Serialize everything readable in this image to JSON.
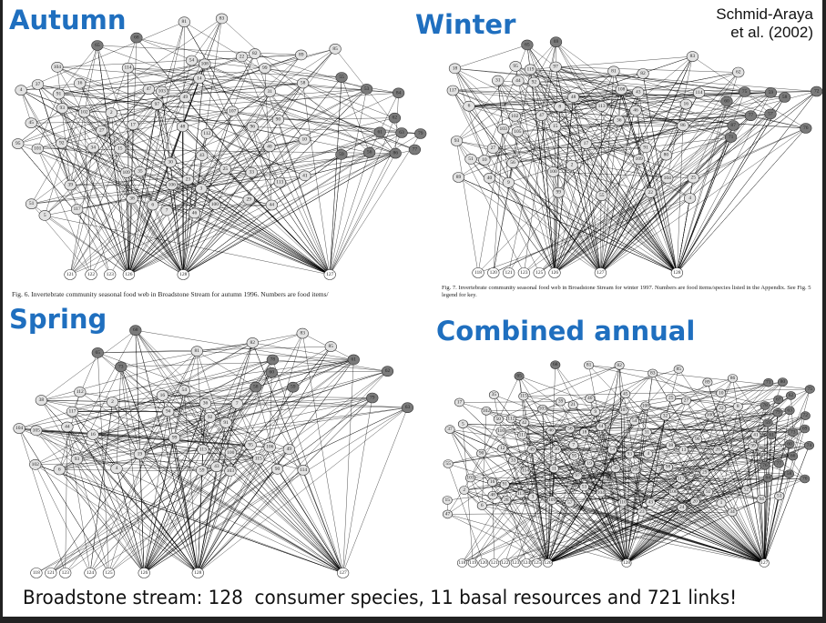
{
  "credit": {
    "line1": "Schmid-Araya",
    "line2": "et al. (2002)"
  },
  "footer": "Broadstone stream: 128  consumer species, 11 basal resources and 721 links!",
  "colors": {
    "title": "#1f6fbf",
    "node_light": "#e2e2e2",
    "node_dark": "#7a7a7a",
    "node_basal": "#ffffff",
    "link": "#000000"
  },
  "panels": [
    {
      "title": "Autumn",
      "caption": "Fig. 6.   Invertebrate community seasonal food web in Broadstone Stream for autumn 1996. Numbers are food items/",
      "top": [
        "65",
        "68",
        "81",
        "83",
        "82",
        "89",
        "85"
      ],
      "middle": [
        "114",
        "102",
        "117",
        "38",
        "39",
        "104",
        "40",
        "16",
        "107",
        "22",
        "15",
        "17",
        "23",
        "25",
        "103",
        "112",
        "113",
        "41",
        "106",
        "108",
        "109",
        "43",
        "27",
        "31",
        "29",
        "30",
        "44",
        "45",
        "46",
        "47",
        "48",
        "99",
        "100",
        "90",
        "95",
        "96",
        "97",
        "93",
        "92",
        "49",
        "101",
        "91",
        "51",
        "54",
        "58",
        "33",
        "35",
        "34",
        "37",
        "2",
        "3",
        "4",
        "5",
        "10",
        "6",
        "7",
        "14"
      ],
      "dark": [
        "84",
        "77",
        "79",
        "59",
        "62",
        "63",
        "53",
        "61",
        "86",
        "55",
        "56"
      ],
      "bottom": [
        "121",
        "122",
        "123",
        "126",
        "128",
        "127"
      ]
    },
    {
      "title": "Winter",
      "caption": "Fig. 7.   Invertebrate community seasonal food web in Broadstone Stream for winter 1997. Numbers are food items/species listed in the Appendix. See Fig. 5 legend for key.",
      "top": [
        "65",
        "69",
        "81",
        "82",
        "83",
        "62"
      ],
      "middle": [
        "89",
        "86",
        "80",
        "22",
        "114",
        "117",
        "102",
        "103",
        "104",
        "105",
        "113",
        "119",
        "16",
        "18",
        "15",
        "17",
        "109",
        "108",
        "25",
        "27",
        "31",
        "51",
        "55",
        "56",
        "36",
        "40",
        "43",
        "44",
        "46",
        "47",
        "48",
        "91",
        "92",
        "93",
        "95",
        "97",
        "99",
        "100",
        "2",
        "4",
        "6",
        "8",
        "9",
        "10"
      ],
      "dark": [
        "87",
        "75",
        "76",
        "71",
        "72",
        "77",
        "58",
        "59",
        "60",
        "57"
      ],
      "bottom": [
        "118",
        "120",
        "121",
        "123",
        "125",
        "126",
        "127",
        "128"
      ]
    },
    {
      "title": "Spring",
      "caption": "",
      "top": [
        "65",
        "68",
        "81",
        "82",
        "83",
        "85"
      ],
      "middle": [
        "90",
        "102",
        "117",
        "105",
        "19",
        "106",
        "104",
        "103",
        "16",
        "112",
        "113",
        "114",
        "115",
        "59",
        "49",
        "38",
        "36",
        "91",
        "92",
        "93",
        "94",
        "95",
        "99",
        "100",
        "54",
        "43",
        "44",
        "2",
        "4",
        "6",
        "7",
        "16"
      ],
      "dark": [
        "78",
        "79",
        "73",
        "58",
        "59",
        "60",
        "61",
        "62",
        "63"
      ],
      "bottom": [
        "118",
        "121",
        "123",
        "124",
        "125",
        "126",
        "128",
        "127"
      ]
    },
    {
      "title": "Combined annual",
      "caption": "",
      "top": [
        "65",
        "68",
        "81",
        "82",
        "83",
        "85",
        "89",
        "86"
      ],
      "middle": [
        "101",
        "102",
        "103",
        "104",
        "105",
        "106",
        "107",
        "108",
        "109",
        "110",
        "111",
        "112",
        "113",
        "114",
        "115",
        "116",
        "117",
        "13",
        "14",
        "15",
        "16",
        "17",
        "18",
        "19",
        "20",
        "21",
        "22",
        "23",
        "24",
        "25",
        "26",
        "27",
        "28",
        "29",
        "30",
        "31",
        "32",
        "33",
        "34",
        "35",
        "36",
        "37",
        "38",
        "39",
        "40",
        "41",
        "42",
        "43",
        "44",
        "45",
        "46",
        "47",
        "48",
        "49",
        "50",
        "51",
        "52",
        "53",
        "54",
        "55",
        "56",
        "57",
        "1",
        "2",
        "3",
        "4",
        "5",
        "6",
        "7",
        "8",
        "9",
        "10",
        "11",
        "12",
        "90",
        "91",
        "92",
        "93",
        "94",
        "95",
        "96",
        "97",
        "98",
        "99",
        "100"
      ],
      "dark": [
        "58",
        "59",
        "60",
        "61",
        "62",
        "63",
        "64",
        "66",
        "67",
        "69",
        "70",
        "71",
        "72",
        "73",
        "74",
        "75",
        "76",
        "77",
        "78",
        "79",
        "80"
      ],
      "bottom": [
        "118",
        "119",
        "120",
        "121",
        "122",
        "123",
        "124",
        "125",
        "126",
        "128",
        "127"
      ]
    }
  ]
}
